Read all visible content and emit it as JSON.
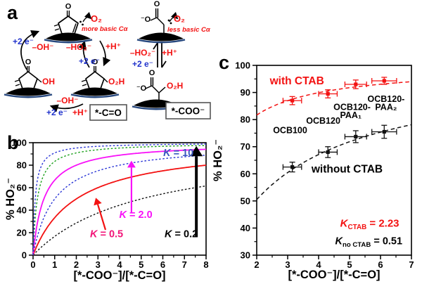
{
  "figure": {
    "panels": {
      "a": "a",
      "b": "b",
      "c": "c"
    }
  },
  "panel_a": {
    "o2": "O₂",
    "more_basic": "more basic Cα",
    "less_basic": "less basic Cα",
    "plus_2e": "+2 e⁻",
    "minus_oh": "–OH⁻",
    "minus_ho2": "–HO₂⁻",
    "plus_h": "+H⁺",
    "o": "O",
    "o_neg": "⁻O",
    "oh": "OH",
    "o2h": "O₂H",
    "box_ketone": "*-C=O",
    "box_carboxylate": "*-COO⁻"
  },
  "chart_data": [
    {
      "id": "panel_b",
      "type": "line",
      "xlabel": "[*-COO⁻]/[*-C=O]",
      "ylabel": "% HO₂⁻",
      "xlim": [
        0,
        8
      ],
      "ylim": [
        0,
        100
      ],
      "xticks": [
        0,
        1,
        2,
        3,
        4,
        5,
        6,
        7,
        8
      ],
      "yticks": [
        0,
        20,
        40,
        60,
        80,
        100
      ],
      "grid": false,
      "curve_model": "percent HO2- = 100*K*x/(1+K*x)",
      "series": [
        {
          "name": "K = 0.2",
          "K": 0.2,
          "color": "#111111",
          "style": "dashed"
        },
        {
          "name": "K = 0.5",
          "K": 0.5,
          "color": "#f31111",
          "style": "solid"
        },
        {
          "name": "K = 1",
          "K": 1.0,
          "color": "#2a35d6",
          "style": "dashed"
        },
        {
          "name": "K = 2.0",
          "K": 2.0,
          "color": "#f812f8",
          "style": "solid"
        },
        {
          "name": "K = 5",
          "K": 5.0,
          "color": "#1aa01a",
          "style": "dashed"
        },
        {
          "name": "K = 10",
          "K": 10.0,
          "color": "#2a35d6",
          "style": "dashed"
        }
      ],
      "annotations": [
        {
          "k": "K",
          "rest": " = 10",
          "color": "#3a57c0",
          "x": 6.72,
          "y": 88,
          "size": 14.5
        },
        {
          "k": "K",
          "rest": " = 2.0",
          "color": "#f812f8",
          "x": 4.75,
          "y": 33,
          "size": 14.5
        },
        {
          "k": "K",
          "rest": " = 0.5",
          "color": "#f21578",
          "x": 3.4,
          "y": 16,
          "size": 14.5
        },
        {
          "k": "K",
          "rest": " = 0.2",
          "color": "#000000",
          "x": 6.85,
          "y": 16,
          "size": 14.5
        }
      ],
      "arrows": [
        {
          "color": "#f31111",
          "width": 2.2,
          "from": [
            3.35,
            22.5
          ],
          "to": [
            2.9,
            51
          ]
        },
        {
          "color": "#f812f8",
          "width": 2.2,
          "from": [
            4.55,
            38.0
          ],
          "to": [
            4.55,
            84
          ]
        },
        {
          "color": "#000000",
          "width": 4.0,
          "from": [
            7.55,
            16.0
          ],
          "to": [
            7.55,
            97
          ]
        }
      ]
    },
    {
      "id": "panel_c",
      "type": "scatter",
      "xlabel": "[*-COO⁻]/[*-C=O]",
      "ylabel": "% HO₂⁻",
      "xlim": [
        2,
        7
      ],
      "ylim": [
        30,
        100
      ],
      "xticks": [
        2,
        3,
        4,
        5,
        6,
        7
      ],
      "yticks": [
        30,
        40,
        50,
        60,
        70,
        80,
        90,
        100
      ],
      "grid": false,
      "curve_model": "percent HO2- = 100*K*x/(1+K*x)",
      "point_labels": [
        "OCB100",
        "OCB120",
        "OCB120-PAA₁",
        "OCB120-PAA₂"
      ],
      "series": [
        {
          "name": "with CTAB",
          "color": "#f31111",
          "fit_K": 2.23,
          "x": [
            3.15,
            4.3,
            5.2,
            6.12
          ],
          "y": [
            87.0,
            89.5,
            93.0,
            94.3
          ],
          "xerr": [
            0.3,
            0.3,
            0.35,
            0.4
          ],
          "yerr": [
            1.5,
            1.5,
            1.6,
            1.3
          ]
        },
        {
          "name": "without CTAB",
          "color": "#111111",
          "fit_K": 0.51,
          "x": [
            3.15,
            4.3,
            5.2,
            6.12
          ],
          "y": [
            62.5,
            68.0,
            73.7,
            75.5
          ],
          "xerr": [
            0.3,
            0.3,
            0.35,
            0.4
          ],
          "yerr": [
            1.8,
            2.0,
            2.2,
            2.4
          ]
        }
      ],
      "annotations": [
        {
          "text": "with CTAB",
          "color": "#f31111",
          "x": 3.3,
          "y": 93.0,
          "size": 15.5
        },
        {
          "text": "without CTAB",
          "color": "#000000",
          "x": 4.92,
          "y": 60.5,
          "size": 15.5
        },
        {
          "text": "OCB100",
          "color": "#000000",
          "x": 3.08,
          "y": 75.0,
          "size": 12.5
        },
        {
          "text": "OCB120",
          "color": "#000000",
          "x": 4.15,
          "y": 78.5,
          "size": 12.5
        },
        {
          "text": "OCB120-",
          "color": "#000000",
          "x": 5.08,
          "y": 83.5,
          "size": 12.5
        },
        {
          "text": "PAA₁",
          "color": "#000000",
          "x": 5.04,
          "y": 80.5,
          "size": 12.5
        },
        {
          "text": "OCB120-",
          "color": "#000000",
          "x": 6.18,
          "y": 86.5,
          "size": 12.5
        },
        {
          "text": "PAA₂",
          "color": "#000000",
          "x": 6.18,
          "y": 83.5,
          "size": 12.5
        },
        {
          "k": "K",
          "sub": "CTAB",
          "rest": " = 2.23",
          "color": "#f31111",
          "x": 5.65,
          "y": 40.5,
          "size": 15
        },
        {
          "k": "K",
          "sub": "no CTAB",
          "rest": " = 0.51",
          "color": "#000000",
          "x": 5.62,
          "y": 34.0,
          "size": 14.5
        }
      ]
    }
  ]
}
